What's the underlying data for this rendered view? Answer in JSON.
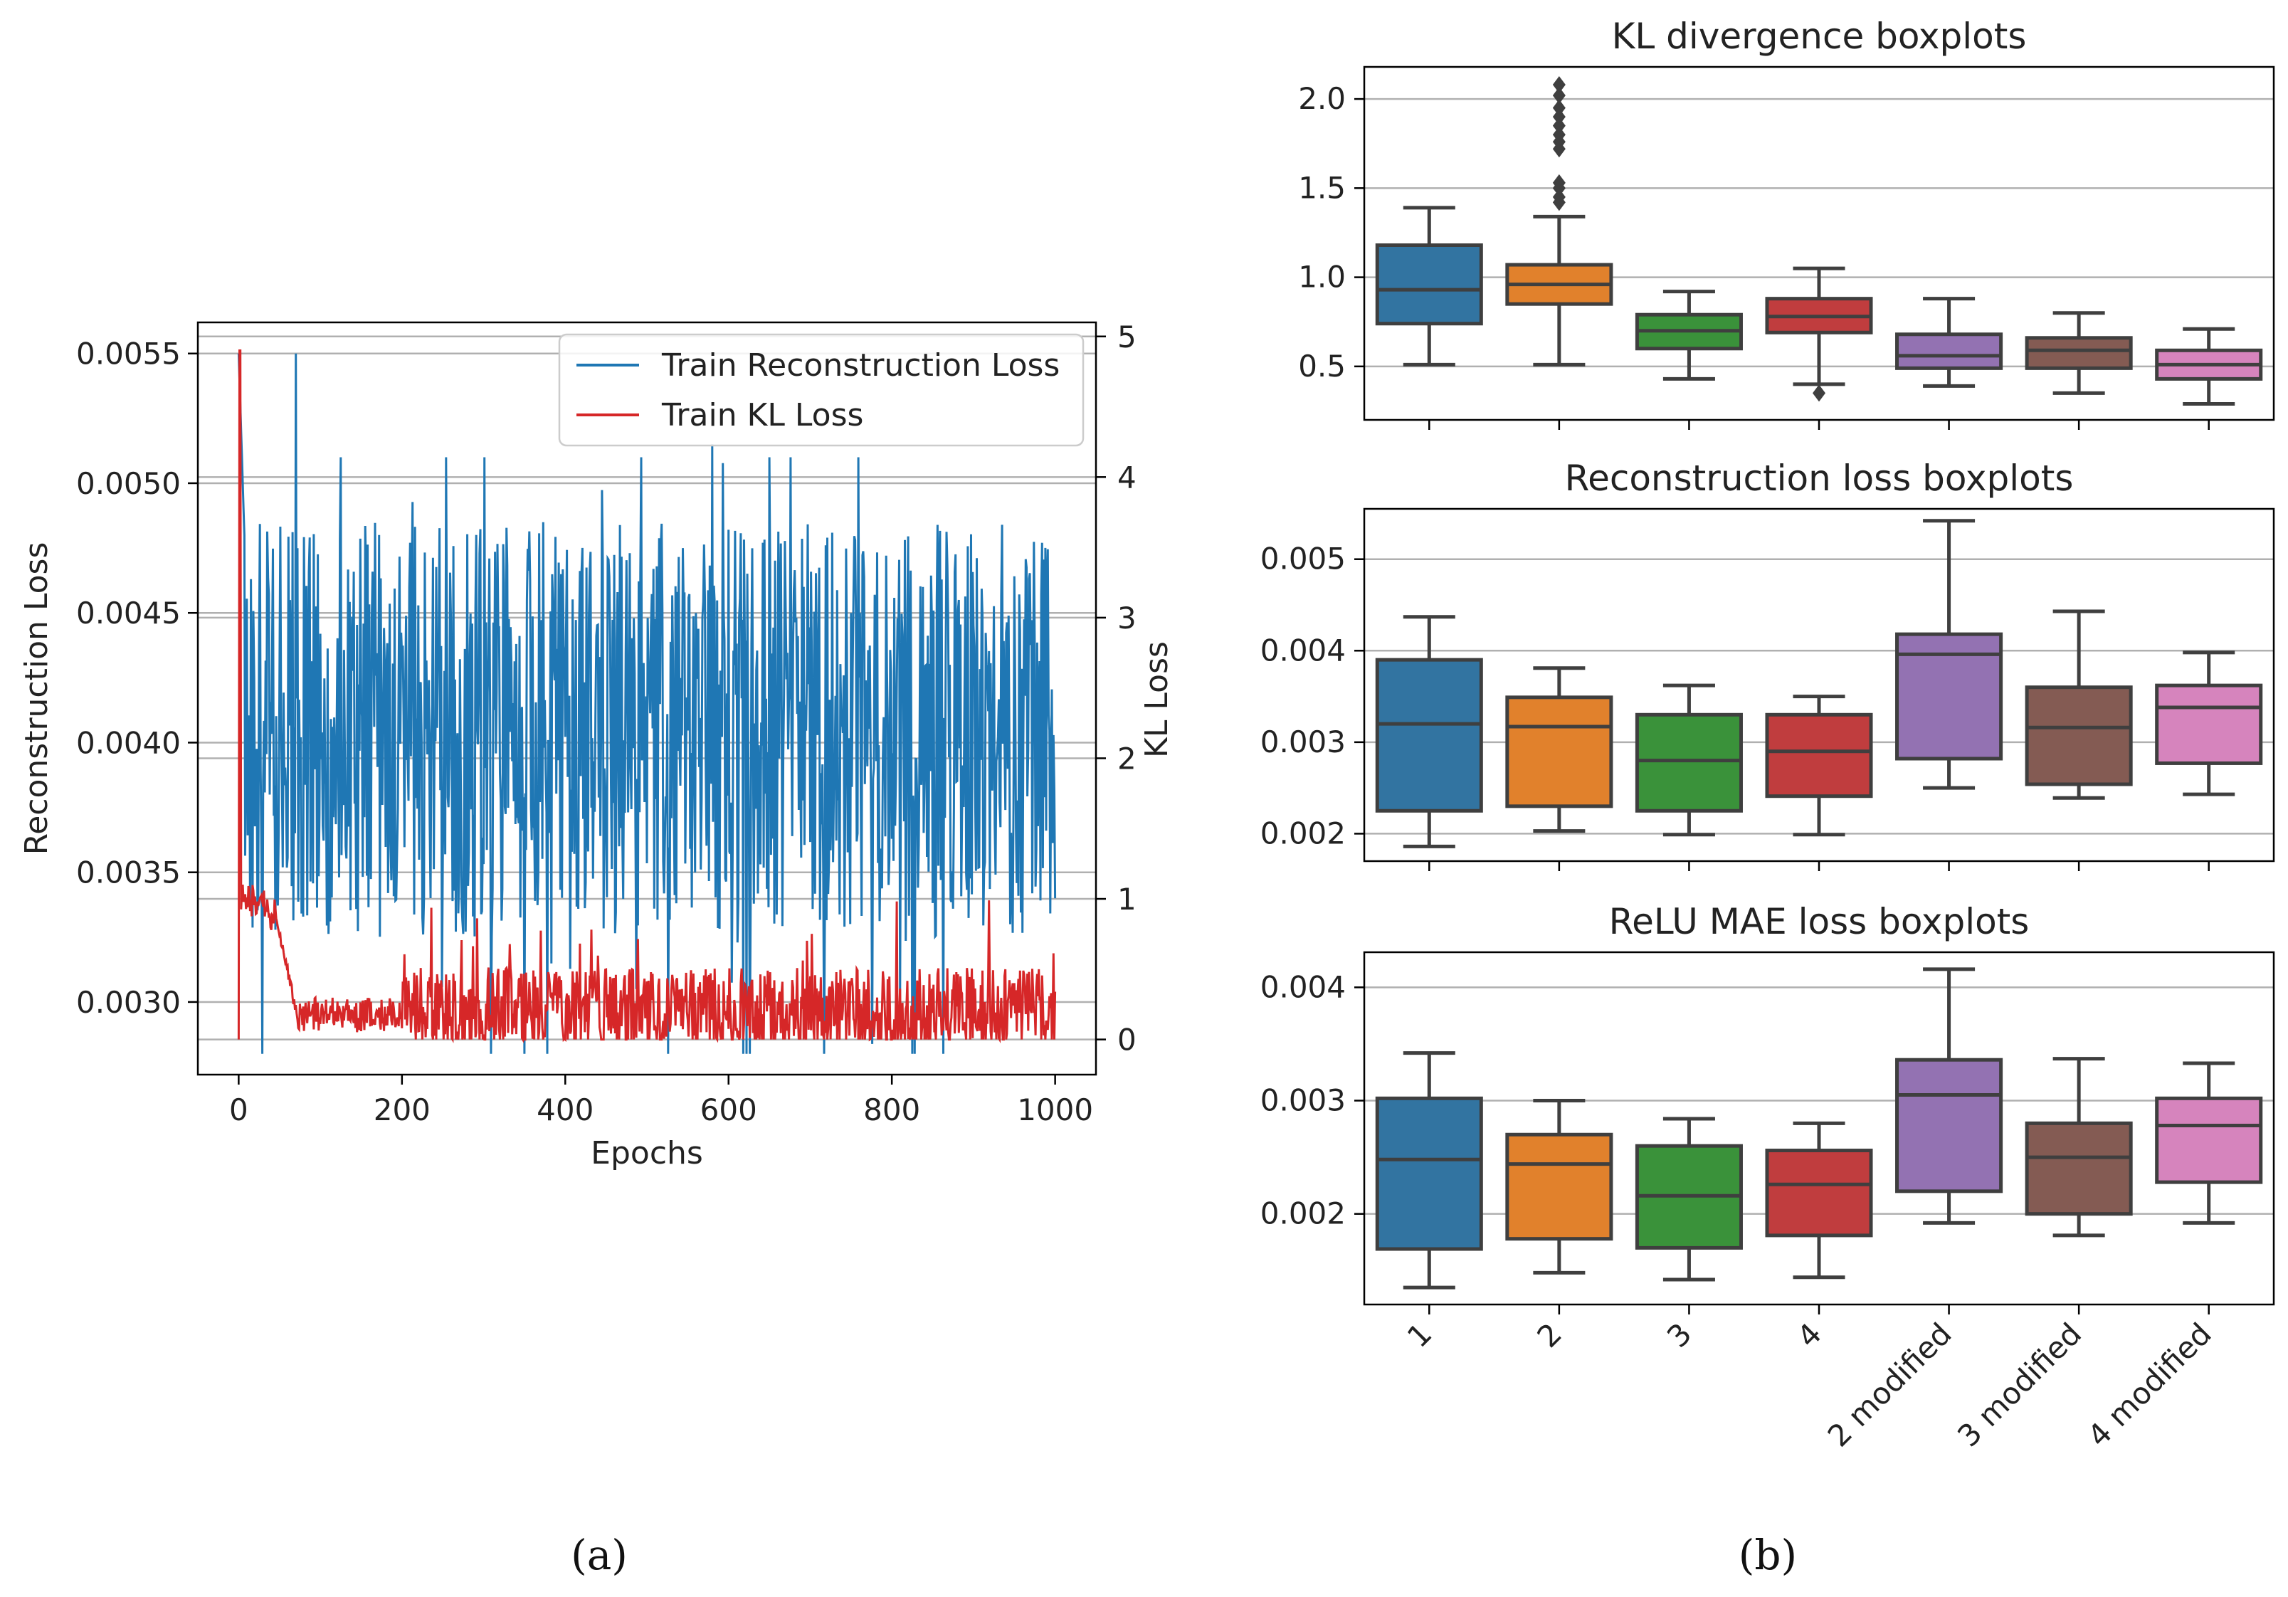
{
  "chart_data": [
    {
      "type": "line",
      "panel": "a",
      "caption": "(a)",
      "xlabel": "Epochs",
      "ylabel_left": "Reconstruction Loss",
      "ylabel_right": "KL Loss",
      "xlim": [
        -50,
        1050
      ],
      "xticks": [
        0,
        200,
        400,
        600,
        800,
        1000
      ],
      "ylim_left": [
        0.00272,
        0.00562
      ],
      "yticks_left": [
        "0.0030",
        "0.0035",
        "0.0040",
        "0.0045",
        "0.0050",
        "0.0055"
      ],
      "ylim_right": [
        -0.25,
        5.1
      ],
      "yticks_right": [
        0,
        1,
        2,
        3,
        4,
        5
      ],
      "grid": "y",
      "legend_position": "top-right",
      "series": [
        {
          "name": "Train Reconstruction Loss",
          "axis": "left",
          "color": "#1f77b4",
          "mean": 0.00405,
          "low_bound": 0.0028,
          "high_bound": 0.0051,
          "notable_points": [
            [
              0,
              0.0055
            ],
            [
              70,
              0.0055
            ],
            [
              580,
              0.00515
            ],
            [
              1000,
              0.0034
            ]
          ]
        },
        {
          "name": "Train KL Loss",
          "axis": "right",
          "color": "#d62728",
          "notable_points": [
            [
              0,
              0
            ],
            [
              2,
              4.9
            ],
            [
              10,
              1.1
            ],
            [
              30,
              1.0
            ],
            [
              50,
              0.45
            ],
            [
              70,
              0.05
            ],
            [
              200,
              0.2
            ],
            [
              500,
              0.35
            ],
            [
              800,
              0.35
            ],
            [
              1000,
              0.2
            ]
          ]
        }
      ]
    },
    {
      "type": "box",
      "panel": "b",
      "caption": "(b)",
      "categories": [
        "1",
        "2",
        "3",
        "4",
        "2 modified",
        "3 modified",
        "4 modified"
      ],
      "colors": [
        "#3274a1",
        "#e1812c",
        "#3a923a",
        "#c03d3e",
        "#9372b2",
        "#845b53",
        "#d684bd"
      ],
      "subplots": [
        {
          "title": "KL divergence boxplots",
          "ylim": [
            0.2,
            2.18
          ],
          "yticks": [
            "0.5",
            "1.0",
            "1.5",
            "2.0"
          ],
          "boxes": [
            {
              "whislo": 0.51,
              "q1": 0.74,
              "med": 0.93,
              "q3": 1.18,
              "whishi": 1.39,
              "fliers": []
            },
            {
              "whislo": 0.51,
              "q1": 0.85,
              "med": 0.96,
              "q3": 1.07,
              "whishi": 1.34,
              "fliers": [
                1.42,
                1.45,
                1.5,
                1.53,
                1.72,
                1.76,
                1.8,
                1.85,
                1.9,
                1.95,
                2.02,
                2.08
              ]
            },
            {
              "whislo": 0.43,
              "q1": 0.6,
              "med": 0.7,
              "q3": 0.79,
              "whishi": 0.92,
              "fliers": []
            },
            {
              "whislo": 0.4,
              "q1": 0.69,
              "med": 0.78,
              "q3": 0.88,
              "whishi": 1.05,
              "fliers": [
                0.35
              ]
            },
            {
              "whislo": 0.39,
              "q1": 0.49,
              "med": 0.56,
              "q3": 0.68,
              "whishi": 0.88,
              "fliers": []
            },
            {
              "whislo": 0.35,
              "q1": 0.49,
              "med": 0.59,
              "q3": 0.66,
              "whishi": 0.8,
              "fliers": []
            },
            {
              "whislo": 0.29,
              "q1": 0.43,
              "med": 0.51,
              "q3": 0.59,
              "whishi": 0.71,
              "fliers": []
            }
          ]
        },
        {
          "title": "Reconstruction loss boxplots",
          "ylim": [
            0.0017,
            0.00555
          ],
          "yticks": [
            "0.002",
            "0.003",
            "0.004",
            "0.005"
          ],
          "boxes": [
            {
              "whislo": 0.00186,
              "q1": 0.00225,
              "med": 0.0032,
              "q3": 0.0039,
              "whishi": 0.00437,
              "fliers": []
            },
            {
              "whislo": 0.00203,
              "q1": 0.0023,
              "med": 0.00317,
              "q3": 0.00349,
              "whishi": 0.00381,
              "fliers": []
            },
            {
              "whislo": 0.00199,
              "q1": 0.00225,
              "med": 0.0028,
              "q3": 0.0033,
              "whishi": 0.00362,
              "fliers": []
            },
            {
              "whislo": 0.00199,
              "q1": 0.00241,
              "med": 0.0029,
              "q3": 0.0033,
              "whishi": 0.0035,
              "fliers": []
            },
            {
              "whislo": 0.0025,
              "q1": 0.00282,
              "med": 0.00396,
              "q3": 0.00418,
              "whishi": 0.00542,
              "fliers": []
            },
            {
              "whislo": 0.00239,
              "q1": 0.00254,
              "med": 0.00316,
              "q3": 0.0036,
              "whishi": 0.00443,
              "fliers": []
            },
            {
              "whislo": 0.00243,
              "q1": 0.00277,
              "med": 0.00338,
              "q3": 0.00362,
              "whishi": 0.00398,
              "fliers": []
            }
          ]
        },
        {
          "title": "ReLU MAE loss boxplots",
          "ylim": [
            0.0012,
            0.00431
          ],
          "yticks": [
            "0.002",
            "0.003",
            "0.004"
          ],
          "boxes": [
            {
              "whislo": 0.00135,
              "q1": 0.00169,
              "med": 0.00248,
              "q3": 0.00302,
              "whishi": 0.00342,
              "fliers": []
            },
            {
              "whislo": 0.00148,
              "q1": 0.00178,
              "med": 0.00244,
              "q3": 0.0027,
              "whishi": 0.003,
              "fliers": []
            },
            {
              "whislo": 0.00142,
              "q1": 0.0017,
              "med": 0.00216,
              "q3": 0.0026,
              "whishi": 0.00284,
              "fliers": []
            },
            {
              "whislo": 0.00144,
              "q1": 0.00181,
              "med": 0.00226,
              "q3": 0.00256,
              "whishi": 0.0028,
              "fliers": []
            },
            {
              "whislo": 0.00192,
              "q1": 0.0022,
              "med": 0.00305,
              "q3": 0.00336,
              "whishi": 0.00416,
              "fliers": []
            },
            {
              "whislo": 0.00181,
              "q1": 0.002,
              "med": 0.0025,
              "q3": 0.0028,
              "whishi": 0.00337,
              "fliers": []
            },
            {
              "whislo": 0.00192,
              "q1": 0.00228,
              "med": 0.00278,
              "q3": 0.00302,
              "whishi": 0.00333,
              "fliers": []
            }
          ]
        }
      ]
    }
  ]
}
